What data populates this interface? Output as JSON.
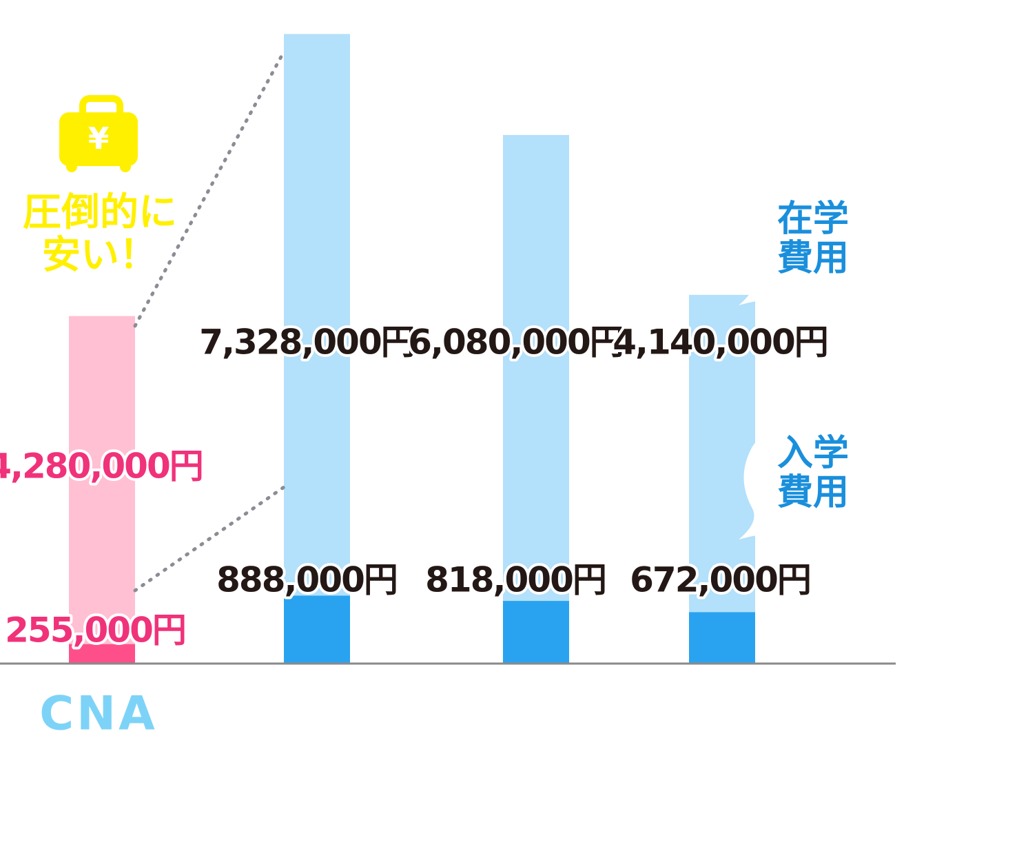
{
  "chart_data": {
    "type": "stacked_bar",
    "categories": [
      "CNA",
      null,
      null,
      null
    ],
    "series": [
      {
        "name": "入学費用",
        "colors": [
          "#ff4f8b",
          "#29a3f0",
          "#29a3f0",
          "#29a3f0"
        ],
        "values": [
          255000,
          888000,
          818000,
          672000
        ],
        "value_labels": [
          "255,000円",
          "888,000円",
          "818,000円",
          "672,000円"
        ]
      },
      {
        "name": "在学費用",
        "colors": [
          "#ffc0d3",
          "#b3e0fb",
          "#b3e0fb",
          "#b3e0fb"
        ],
        "values": [
          4280000,
          7328000,
          6080000,
          4140000
        ],
        "value_labels": [
          "4,280,000円",
          "7,328,000円",
          "6,080,000円",
          "4,140,000円"
        ]
      }
    ],
    "label_colors": [
      "#f0327a",
      "#231815",
      "#231815",
      "#231815"
    ],
    "ylim": [
      0,
      8300000
    ],
    "annotation": "圧倒的に安い！"
  }
}
